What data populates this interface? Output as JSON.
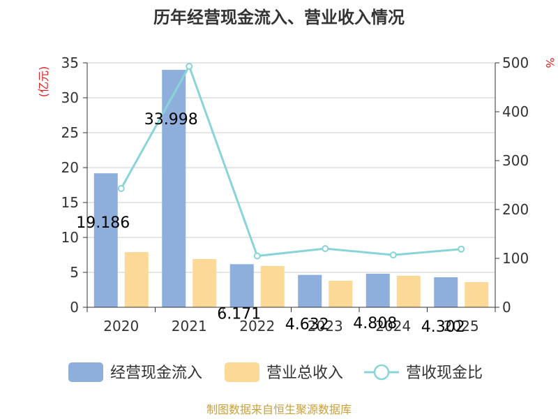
{
  "chart_data": {
    "type": "bar",
    "title": "历年经营现金流入、营业收入情况",
    "categories": [
      "2020",
      "2021",
      "2022",
      "2023",
      "2024",
      "2025"
    ],
    "series": [
      {
        "name": "经营现金流入",
        "type": "bar",
        "axis": "left",
        "color": "#8eaedc",
        "values": [
          19.186,
          33.998,
          6.171,
          4.632,
          4.808,
          4.302
        ],
        "labels": [
          "19.186",
          "33.998",
          "6.171",
          "4.632",
          "4.808",
          "4.302"
        ]
      },
      {
        "name": "营业总收入",
        "type": "bar",
        "axis": "left",
        "color": "#fdd998",
        "values": [
          7.9,
          6.9,
          5.9,
          3.8,
          4.5,
          3.6
        ]
      },
      {
        "name": "营收现金比",
        "type": "line",
        "axis": "right",
        "color": "#88d4d8",
        "values": [
          243,
          493,
          105,
          120,
          107,
          119
        ]
      }
    ],
    "y_left": {
      "label": "(亿元)",
      "min": 0,
      "max": 35,
      "ticks": [
        0,
        5,
        10,
        15,
        20,
        25,
        30,
        35
      ]
    },
    "y_right": {
      "label": "%",
      "min": 0,
      "max": 500,
      "ticks": [
        0,
        100,
        200,
        300,
        400,
        500
      ]
    },
    "grid": true,
    "legend_position": "bottom"
  },
  "source": "制图数据来自恒生聚源数据库"
}
